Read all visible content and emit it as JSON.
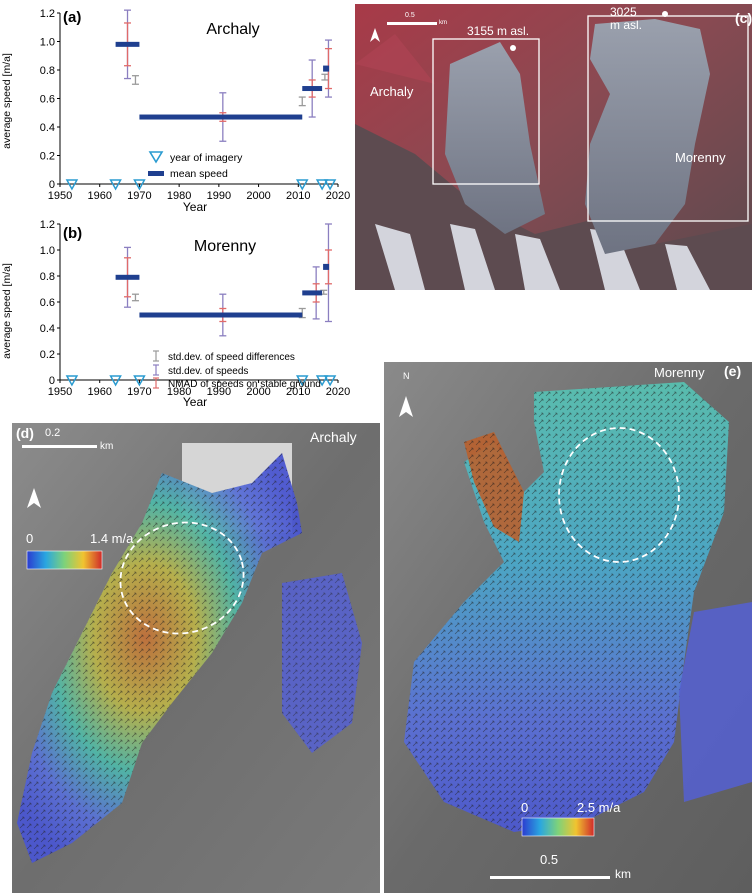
{
  "chart_data": [
    {
      "type": "scatter",
      "panel_label": "(a)",
      "title": "Archaly",
      "xlabel": "Year",
      "ylabel": "average speed [m/a]",
      "xlim": [
        1950,
        2020
      ],
      "ylim": [
        0,
        1.2
      ],
      "xticks": [
        "1950",
        "1960",
        "1970",
        "1980",
        "1990",
        "2000",
        "2010",
        "2020"
      ],
      "yticks": [
        "0",
        "0.2",
        "0.4",
        "0.6",
        "0.8",
        "1.0",
        "1.2"
      ],
      "years_of_imagery": [
        1953,
        1964,
        1970,
        2011,
        2016,
        2018
      ],
      "mean_speed": [
        {
          "from": 1964,
          "to": 1970,
          "value": 0.98
        },
        {
          "from": 1970,
          "to": 2011,
          "value": 0.47
        },
        {
          "from": 2011,
          "to": 2016,
          "value": 0.67
        },
        {
          "from": 2016,
          "to": 2018,
          "value": 0.81
        }
      ],
      "std_dev_speed_differences": [
        {
          "x": 1969,
          "low": 0.7,
          "high": 0.76
        },
        {
          "x": 2011,
          "low": 0.55,
          "high": 0.61
        },
        {
          "x": 2016.7,
          "low": 0.73,
          "high": 0.77
        }
      ],
      "std_dev_speeds": [
        {
          "x": 1967,
          "low": 0.74,
          "high": 1.22
        },
        {
          "x": 1991,
          "low": 0.3,
          "high": 0.64
        },
        {
          "x": 2013.5,
          "low": 0.47,
          "high": 0.87
        },
        {
          "x": 2017.6,
          "low": 0.61,
          "high": 1.01
        }
      ],
      "nmad_stable_ground": [
        {
          "x": 1967,
          "low": 0.83,
          "high": 1.13
        },
        {
          "x": 1991,
          "low": 0.44,
          "high": 0.5
        },
        {
          "x": 2013.5,
          "low": 0.61,
          "high": 0.73
        },
        {
          "x": 2017.6,
          "low": 0.67,
          "high": 0.95
        }
      ],
      "legend": [
        "year of imagery",
        "mean speed"
      ]
    },
    {
      "type": "scatter",
      "panel_label": "(b)",
      "title": "Morenny",
      "xlabel": "Year",
      "ylabel": "average speed [m/a]",
      "xlim": [
        1950,
        2020
      ],
      "ylim": [
        0,
        1.2
      ],
      "xticks": [
        "1950",
        "1960",
        "1970",
        "1980",
        "1990",
        "2000",
        "2010",
        "2020"
      ],
      "yticks": [
        "0",
        "0.2",
        "0.4",
        "0.6",
        "0.8",
        "1.0",
        "1.2"
      ],
      "years_of_imagery": [
        1953,
        1964,
        1970,
        2011,
        2016,
        2018
      ],
      "mean_speed": [
        {
          "from": 1964,
          "to": 1970,
          "value": 0.79
        },
        {
          "from": 1970,
          "to": 2011,
          "value": 0.5
        },
        {
          "from": 2011,
          "to": 2016,
          "value": 0.67
        },
        {
          "from": 2016,
          "to": 2018,
          "value": 0.87
        }
      ],
      "std_dev_speed_differences": [
        {
          "x": 1969,
          "low": 0.61,
          "high": 0.66
        },
        {
          "x": 2011,
          "low": 0.48,
          "high": 0.55
        },
        {
          "x": 2016.4,
          "low": 0.66,
          "high": 0.69
        }
      ],
      "std_dev_speeds": [
        {
          "x": 1967,
          "low": 0.56,
          "high": 1.02
        },
        {
          "x": 1991,
          "low": 0.34,
          "high": 0.66
        },
        {
          "x": 2014.5,
          "low": 0.47,
          "high": 0.87
        },
        {
          "x": 2017.6,
          "low": 0.45,
          "high": 1.2
        }
      ],
      "nmad_stable_ground": [
        {
          "x": 1967,
          "low": 0.64,
          "high": 0.94
        },
        {
          "x": 1991,
          "low": 0.45,
          "high": 0.55
        },
        {
          "x": 2014.5,
          "low": 0.6,
          "high": 0.74
        },
        {
          "x": 2017.6,
          "low": 0.74,
          "high": 1.0
        }
      ],
      "legend": [
        "std.dev. of speed differences",
        "std.dev. of speeds",
        "NMAD of speeds on stable ground"
      ]
    }
  ],
  "colors": {
    "mean_speed": "#1f3f8f",
    "imagery_marker": "#2a9bd0",
    "std_diff": "#9a9a9a",
    "std_speed": "#8b7fc0",
    "nmad": "#e06a6a"
  },
  "panel_c": {
    "label": "(c)",
    "scale_text": "0.5",
    "scale_unit": "km",
    "peak1_label": "3155 m asl.",
    "peak2_label_line1": "3025",
    "peak2_label_line2": "m asl.",
    "label_archaly": "Archaly",
    "label_morenny": "Morenny"
  },
  "panel_d": {
    "label": "(d)",
    "title": "Archaly",
    "scale_text": "0.2",
    "scale_unit": "km",
    "colorbar_min": "0",
    "colorbar_max": "1.4 m/a"
  },
  "panel_e": {
    "label": "(e)",
    "title": "Morenny",
    "scale_text": "0.5",
    "scale_unit": "km",
    "colorbar_min": "0",
    "colorbar_max": "2.5 m/a",
    "north_label": "N"
  }
}
